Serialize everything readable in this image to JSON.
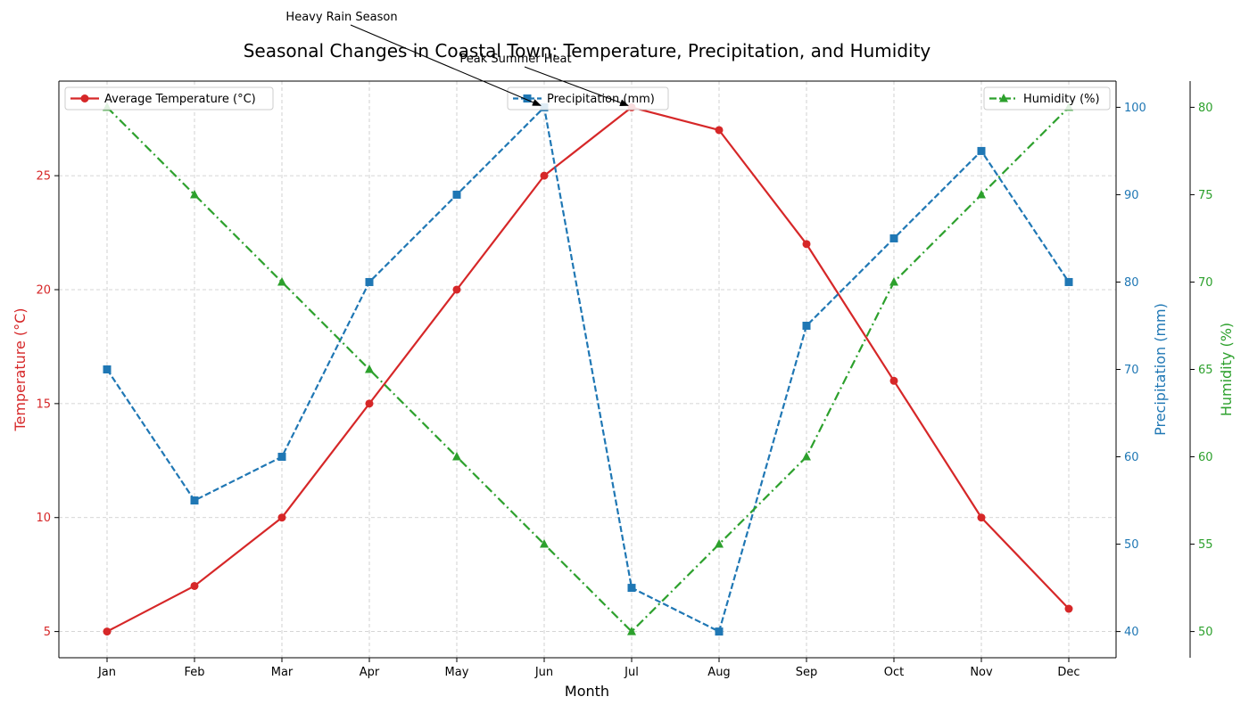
{
  "chart_data": {
    "type": "line",
    "title": "Seasonal Changes in Coastal Town: Temperature, Precipitation, and Humidity",
    "xlabel": "Month",
    "categories": [
      "Jan",
      "Feb",
      "Mar",
      "Apr",
      "May",
      "Jun",
      "Jul",
      "Aug",
      "Sep",
      "Oct",
      "Nov",
      "Dec"
    ],
    "grid": true,
    "axes": [
      {
        "id": "temp",
        "label": "Temperature (°C)",
        "side": "left",
        "color": "#d62728",
        "ylim": [
          3.85,
          29.15
        ],
        "ticks": [
          5,
          10,
          15,
          20,
          25
        ]
      },
      {
        "id": "precip",
        "label": "Precipitation (mm)",
        "side": "right",
        "color": "#1f77b4",
        "ylim": [
          37,
          103
        ],
        "ticks": [
          40,
          50,
          60,
          70,
          80,
          90,
          100
        ]
      },
      {
        "id": "humid",
        "label": "Humidity (%)",
        "side": "right-outer",
        "color": "#2ca02c",
        "ylim": [
          48.5,
          81.5
        ],
        "ticks": [
          50,
          55,
          60,
          65,
          70,
          75,
          80
        ]
      }
    ],
    "series": [
      {
        "name": "Average Temperature (°C)",
        "axis": "temp",
        "color": "#d62728",
        "marker": "circle",
        "dash": "solid",
        "legend": "top-left",
        "values": [
          5,
          7,
          10,
          15,
          20,
          25,
          28,
          27,
          22,
          16,
          10,
          6
        ]
      },
      {
        "name": "Precipitation (mm)",
        "axis": "precip",
        "color": "#1f77b4",
        "marker": "square",
        "dash": "dashed",
        "legend": "top-center",
        "values": [
          70,
          55,
          60,
          80,
          90,
          100,
          45,
          40,
          75,
          85,
          95,
          80
        ]
      },
      {
        "name": "Humidity (%)",
        "axis": "humid",
        "color": "#2ca02c",
        "marker": "triangle",
        "dash": "dashdot",
        "legend": "top-right",
        "values": [
          80,
          75,
          70,
          65,
          60,
          55,
          50,
          55,
          60,
          70,
          75,
          80
        ]
      }
    ],
    "annotations": [
      {
        "text": "Peak Summer Heat",
        "series": 0,
        "point": "Jul"
      },
      {
        "text": "Heavy Rain Season",
        "series": 1,
        "point": "Jun"
      }
    ]
  }
}
